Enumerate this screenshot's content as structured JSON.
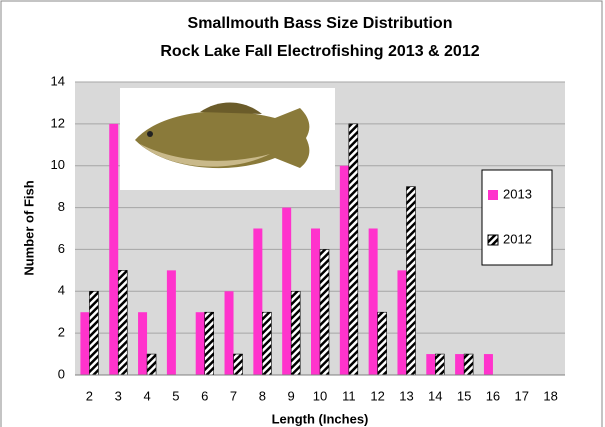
{
  "chart_data": {
    "type": "bar",
    "title": "Smallmouth Bass Size Distribution",
    "subtitle": "Rock Lake Fall Electrofishing 2013 & 2012",
    "x_label": "Length (Inches)",
    "y_label": "Number of Fish",
    "categories": [
      "2",
      "3",
      "4",
      "5",
      "6",
      "7",
      "8",
      "9",
      "10",
      "11",
      "12",
      "13",
      "14",
      "15",
      "16",
      "17",
      "18"
    ],
    "series": [
      {
        "name": "2013",
        "color": "#ff33cc",
        "pattern": "solid",
        "values": [
          3,
          12,
          3,
          5,
          3,
          4,
          7,
          8,
          7,
          10,
          7,
          5,
          1,
          1,
          1,
          0,
          0
        ]
      },
      {
        "name": "2012",
        "color": "#000000",
        "pattern": "hatch",
        "values": [
          4,
          5,
          1,
          0,
          3,
          1,
          3,
          4,
          6,
          12,
          3,
          9,
          1,
          1,
          0,
          0,
          0
        ]
      }
    ],
    "ylim": [
      0,
      14
    ],
    "yticks": [
      0,
      2,
      4,
      6,
      8,
      10,
      12,
      14
    ],
    "grid": true,
    "legend": "right"
  }
}
